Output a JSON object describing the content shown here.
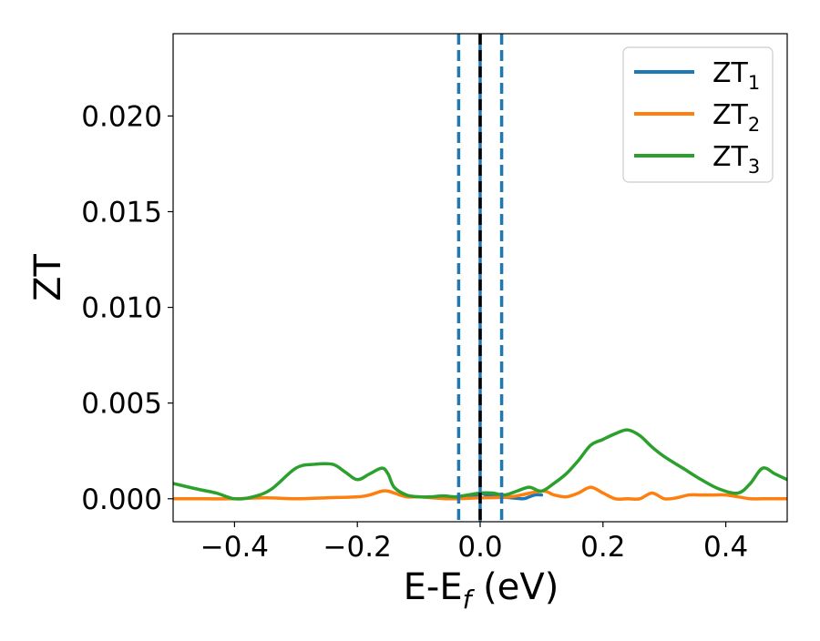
{
  "chart_data": {
    "type": "line",
    "title": "",
    "xlabel": "E-E",
    "xlabel_sub": "f",
    "xlabel_unit": " (eV)",
    "ylabel": "ZT",
    "xlim": [
      -0.5,
      0.5
    ],
    "ylim": [
      -0.0012,
      0.0243
    ],
    "xticks": [
      -0.4,
      -0.2,
      0.0,
      0.2,
      0.4
    ],
    "xtick_labels": [
      "−0.4",
      "−0.2",
      "0.0",
      "0.2",
      "0.4"
    ],
    "yticks": [
      0.0,
      0.005,
      0.01,
      0.015,
      0.02
    ],
    "ytick_labels": [
      "0.000",
      "0.005",
      "0.010",
      "0.015",
      "0.020"
    ],
    "grid": false,
    "legend_position": "top-right",
    "vlines": [
      {
        "x": -0.035,
        "style": "dashed",
        "color": "#1f77b4"
      },
      {
        "x": 0.0,
        "style": "solid",
        "color": "#1f77b4"
      },
      {
        "x": 0.0,
        "style": "dashed",
        "color": "#000000"
      },
      {
        "x": 0.035,
        "style": "dashed",
        "color": "#1f77b4"
      }
    ],
    "series": [
      {
        "name": "ZT",
        "sub": "1",
        "color": "#1f77b4",
        "x": [
          -0.05,
          -0.03,
          -0.01,
          0.0,
          0.01,
          0.03,
          0.05,
          0.07,
          0.08,
          0.09,
          0.1
        ],
        "y": [
          0.0001,
          5e-05,
          0.0001,
          0.0003,
          0.0002,
          0.0001,
          5e-05,
          0.0,
          0.0001,
          0.0002,
          0.0002
        ]
      },
      {
        "name": "ZT",
        "sub": "2",
        "color": "#ff7f0e",
        "x": [
          -0.5,
          -0.45,
          -0.4,
          -0.35,
          -0.3,
          -0.25,
          -0.2,
          -0.18,
          -0.16,
          -0.15,
          -0.14,
          -0.12,
          -0.1,
          -0.05,
          0.0,
          0.05,
          0.1,
          0.12,
          0.14,
          0.16,
          0.18,
          0.2,
          0.22,
          0.24,
          0.26,
          0.28,
          0.3,
          0.32,
          0.34,
          0.36,
          0.38,
          0.4,
          0.42,
          0.44,
          0.46,
          0.48,
          0.5
        ],
        "y": [
          0.0,
          0.0,
          0.0,
          5e-05,
          0.0,
          5e-05,
          0.0001,
          0.0002,
          0.0004,
          0.0004,
          0.0003,
          0.0001,
          0.0001,
          0.0,
          5e-05,
          0.0001,
          0.0004,
          0.0002,
          0.0001,
          0.0003,
          0.0006,
          0.0003,
          0.0,
          0.0,
          0.0,
          0.0003,
          0.0,
          5e-05,
          0.0002,
          0.0002,
          0.0002,
          0.0002,
          0.0001,
          0.0,
          0.0,
          0.0,
          0.0
        ]
      },
      {
        "name": "ZT",
        "sub": "3",
        "color": "#2ca02c",
        "x": [
          -0.5,
          -0.46,
          -0.43,
          -0.4,
          -0.37,
          -0.34,
          -0.3,
          -0.27,
          -0.24,
          -0.22,
          -0.2,
          -0.18,
          -0.16,
          -0.15,
          -0.14,
          -0.12,
          -0.1,
          -0.08,
          -0.06,
          -0.04,
          -0.02,
          0.0,
          0.02,
          0.04,
          0.06,
          0.08,
          0.1,
          0.12,
          0.14,
          0.16,
          0.18,
          0.2,
          0.22,
          0.24,
          0.26,
          0.28,
          0.3,
          0.33,
          0.36,
          0.39,
          0.42,
          0.44,
          0.46,
          0.48,
          0.5
        ],
        "y": [
          0.0008,
          0.0005,
          0.0003,
          0.0,
          0.0001,
          0.0005,
          0.0016,
          0.0018,
          0.0018,
          0.0014,
          0.001,
          0.0013,
          0.0016,
          0.0013,
          0.0006,
          0.0002,
          0.0001,
          0.0001,
          0.00015,
          0.0001,
          0.0002,
          0.0003,
          0.0003,
          0.0002,
          0.0004,
          0.0006,
          0.0004,
          0.0008,
          0.0013,
          0.002,
          0.0028,
          0.0031,
          0.0034,
          0.0036,
          0.0033,
          0.0027,
          0.0022,
          0.0016,
          0.001,
          0.0005,
          0.0003,
          0.0008,
          0.0016,
          0.0013,
          0.001
        ]
      }
    ]
  }
}
